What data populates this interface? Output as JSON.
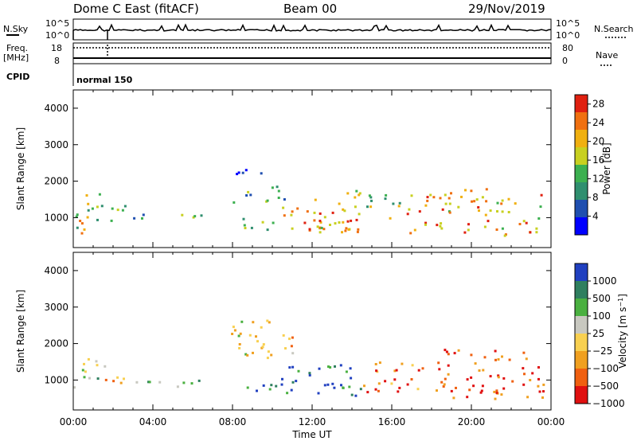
{
  "header": {
    "station": "Dome C East (fitACF)",
    "beam": "Beam 00",
    "date": "29/Nov/2019"
  },
  "top_panels": {
    "nsky_label": "N.Sky",
    "nsky_ticks": [
      "10^5",
      "10^0"
    ],
    "nsearch_label": "N.Search",
    "nsearch_ticks": [
      "10^5",
      "10^0"
    ],
    "freq_label": "Freq.",
    "freq_unit": "[MHz]",
    "freq_ticks": [
      "18",
      "8"
    ],
    "nave_label": "Nave",
    "nave_ticks": [
      "80",
      "0"
    ],
    "cpid_label": "CPID",
    "cpid_value": "normal 150"
  },
  "x_axis": {
    "label": "Time UT",
    "ticks": [
      "00:00",
      "04:00",
      "08:00",
      "12:00",
      "16:00",
      "20:00",
      "00:00"
    ]
  },
  "chart_data": [
    {
      "type": "heatmap",
      "title": "",
      "xlabel": "Time UT",
      "ylabel": "Slant Range [km]",
      "xlim": [
        0,
        24
      ],
      "ylim": [
        180,
        4500
      ],
      "yticks": [
        "1000",
        "2000",
        "3000",
        "4000"
      ],
      "colorbar": {
        "label": "Power [dB]",
        "ticks": [
          "4",
          "8",
          "12",
          "16",
          "20",
          "24",
          "28"
        ],
        "range": [
          0,
          30
        ],
        "colors": [
          "#0000ff",
          "#1f4fb0",
          "#2f8f6f",
          "#3cb050",
          "#c8d020",
          "#f0b010",
          "#f07010",
          "#e02010"
        ]
      },
      "regions": [
        {
          "t": [
            0.0,
            1.6
          ],
          "r": [
            600,
            1750
          ],
          "level": 0.55
        },
        {
          "t": [
            0.0,
            0.5
          ],
          "r": [
            700,
            1100
          ],
          "level": 0.95
        },
        {
          "t": [
            1.2,
            2.6
          ],
          "r": [
            900,
            1400
          ],
          "level": 0.4
        },
        {
          "t": [
            3.0,
            4.6
          ],
          "r": [
            950,
            1150
          ],
          "level": 0.3
        },
        {
          "t": [
            5.0,
            6.4
          ],
          "r": [
            900,
            1150
          ],
          "level": 0.45
        },
        {
          "t": [
            7.9,
            9.4
          ],
          "r": [
            2200,
            2600
          ],
          "level": 0.2
        },
        {
          "t": [
            8.0,
            10.6
          ],
          "r": [
            1400,
            1900
          ],
          "level": 0.35
        },
        {
          "t": [
            8.3,
            10.4
          ],
          "r": [
            700,
            1100
          ],
          "level": 0.45
        },
        {
          "t": [
            10.3,
            12.5
          ],
          "r": [
            600,
            1450
          ],
          "level": 0.75
        },
        {
          "t": [
            12.0,
            14.4
          ],
          "r": [
            600,
            1800
          ],
          "level": 0.7
        },
        {
          "t": [
            13.5,
            14.3
          ],
          "r": [
            700,
            1000
          ],
          "level": 0.85
        },
        {
          "t": [
            14.4,
            16.5
          ],
          "r": [
            1000,
            1650
          ],
          "level": 0.5
        },
        {
          "t": [
            16.6,
            18.0
          ],
          "r": [
            600,
            1700
          ],
          "level": 0.75
        },
        {
          "t": [
            18.0,
            21.5
          ],
          "r": [
            600,
            1850
          ],
          "level": 0.72
        },
        {
          "t": [
            21.5,
            23.6
          ],
          "r": [
            500,
            1700
          ],
          "level": 0.7
        }
      ]
    },
    {
      "type": "heatmap",
      "title": "",
      "xlabel": "Time UT",
      "ylabel": "Slant Range [km]",
      "xlim": [
        0,
        24
      ],
      "ylim": [
        180,
        4500
      ],
      "yticks": [
        "1000",
        "2000",
        "3000",
        "4000"
      ],
      "colorbar": {
        "label": "Velocity [m s^-1]",
        "ticks": [
          "1000",
          "500",
          "100",
          "25",
          "−25",
          "−100",
          "−500",
          "−1000"
        ],
        "colors": [
          "#2040c0",
          "#2f7f5f",
          "#4ab040",
          "#c8c8c0",
          "#f8d050",
          "#f0a020",
          "#f06010",
          "#e01010"
        ]
      },
      "regions": [
        {
          "t": [
            0.0,
            1.6
          ],
          "r": [
            1200,
            1750
          ],
          "level": 0.5
        },
        {
          "t": [
            0.0,
            1.5
          ],
          "r": [
            600,
            1150
          ],
          "level": 0.7
        },
        {
          "t": [
            1.3,
            2.6
          ],
          "r": [
            900,
            1300
          ],
          "level": 0.35
        },
        {
          "t": [
            3.0,
            4.6
          ],
          "r": [
            900,
            1100
          ],
          "level": 0.7
        },
        {
          "t": [
            5.0,
            6.4
          ],
          "r": [
            800,
            1100
          ],
          "level": 0.7
        },
        {
          "t": [
            7.9,
            11.0
          ],
          "r": [
            1600,
            2700
          ],
          "level": 0.45
        },
        {
          "t": [
            8.3,
            10.4
          ],
          "r": [
            700,
            1000
          ],
          "level": 0.85
        },
        {
          "t": [
            10.3,
            14.4
          ],
          "r": [
            600,
            1450
          ],
          "level": 0.9
        },
        {
          "t": [
            14.4,
            18.5
          ],
          "r": [
            700,
            1600
          ],
          "level": 0.2
        },
        {
          "t": [
            18.5,
            23.6
          ],
          "r": [
            500,
            1900
          ],
          "level": 0.15
        }
      ]
    }
  ]
}
